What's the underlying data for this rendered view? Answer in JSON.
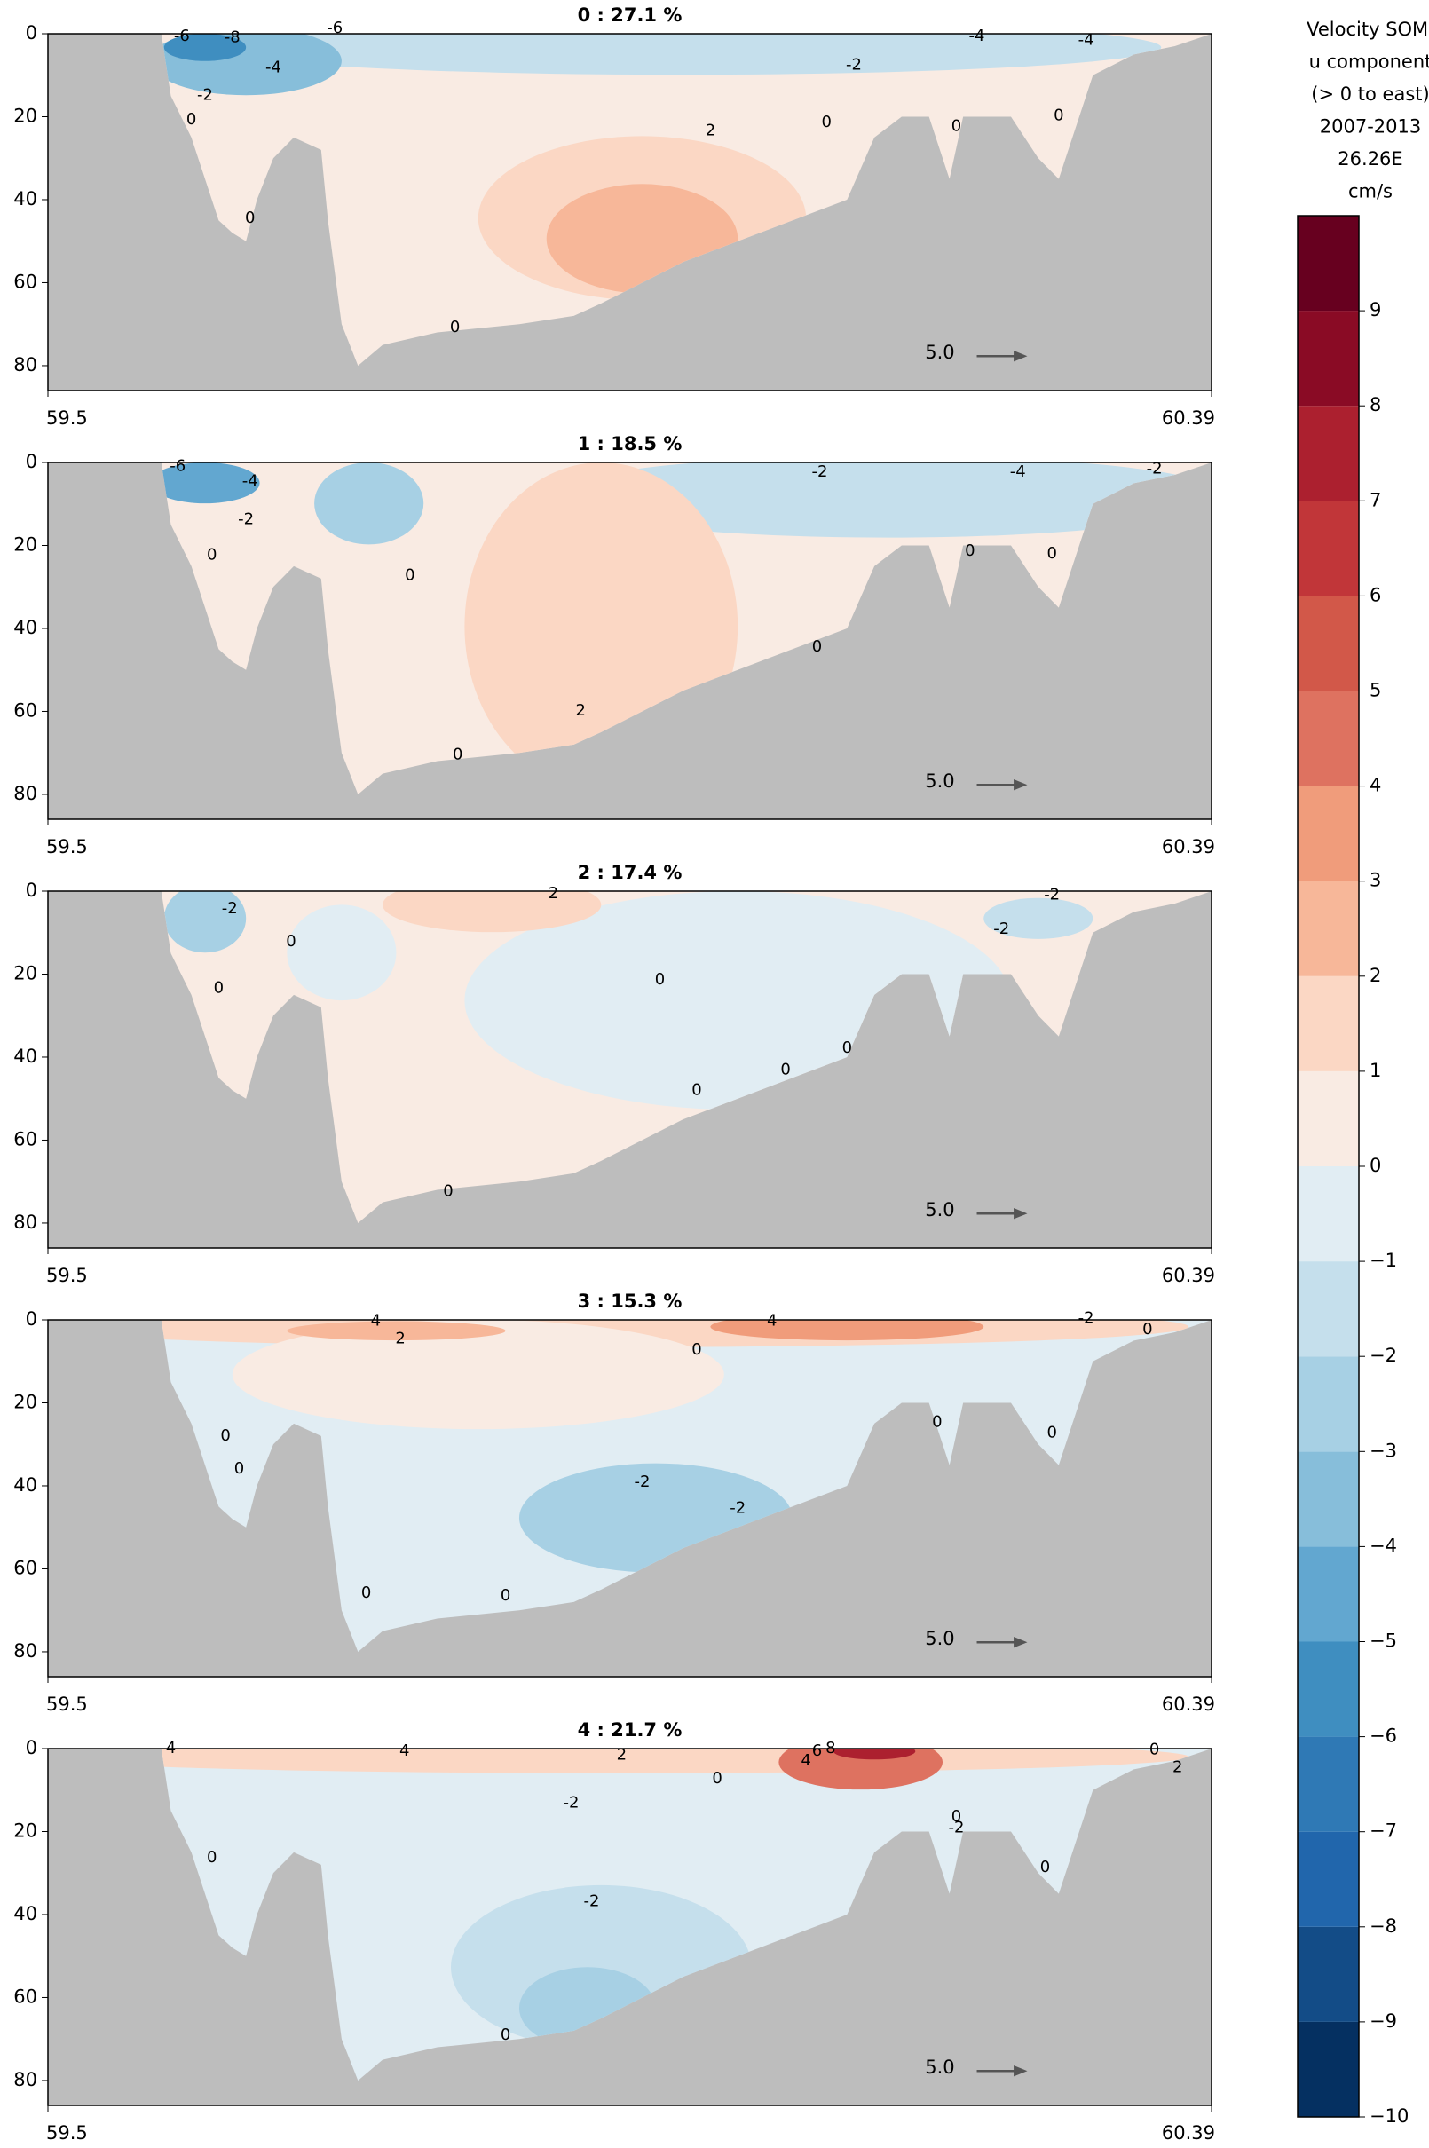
{
  "chart_data": [
    {
      "type": "section",
      "title": "0 : 27.1 %",
      "xlim": [
        59.5,
        60.39
      ],
      "xticks": [
        59.5,
        60.39
      ],
      "ylim": [
        0,
        86
      ],
      "yticks": [
        0,
        20,
        40,
        60,
        80
      ],
      "contour_labels": [
        -6,
        -8,
        -6,
        -2,
        -4,
        0,
        2,
        -2,
        -4,
        -4,
        0,
        0,
        0,
        0,
        0
      ],
      "reference_label": "5.0"
    },
    {
      "type": "section",
      "title": "1 : 18.5 %",
      "xlim": [
        59.5,
        60.39
      ],
      "xticks": [
        59.5,
        60.39
      ],
      "ylim": [
        0,
        86
      ],
      "yticks": [
        0,
        20,
        40,
        60,
        80
      ],
      "contour_labels": [
        -6,
        -4,
        -2,
        0,
        0,
        -2,
        -4,
        -2,
        0,
        0,
        0,
        2,
        0
      ],
      "reference_label": "5.0"
    },
    {
      "type": "section",
      "title": "2 : 17.4 %",
      "xlim": [
        59.5,
        60.39
      ],
      "xticks": [
        59.5,
        60.39
      ],
      "ylim": [
        0,
        86
      ],
      "yticks": [
        0,
        20,
        40,
        60,
        80
      ],
      "contour_labels": [
        -2,
        0,
        0,
        2,
        0,
        -2,
        -2,
        0,
        0,
        0,
        0
      ],
      "reference_label": "5.0"
    },
    {
      "type": "section",
      "title": "3 : 15.3 %",
      "xlim": [
        59.5,
        60.39
      ],
      "xticks": [
        59.5,
        60.39
      ],
      "ylim": [
        0,
        86
      ],
      "yticks": [
        0,
        20,
        40,
        60,
        80
      ],
      "contour_labels": [
        4,
        2,
        4,
        0,
        -2,
        0,
        0,
        0,
        -2,
        -2,
        0,
        0,
        0,
        0
      ],
      "reference_label": "5.0"
    },
    {
      "type": "section",
      "title": "4 : 21.7 %",
      "xlim": [
        59.5,
        60.39
      ],
      "xticks": [
        59.5,
        60.39
      ],
      "ylim": [
        0,
        86
      ],
      "yticks": [
        0,
        20,
        40,
        60,
        80
      ],
      "contour_labels": [
        4,
        4,
        2,
        0,
        4,
        6,
        8,
        -2,
        0,
        -2,
        -2,
        0,
        0,
        0,
        2,
        0
      ],
      "reference_label": "5.0"
    },
    {
      "type": "colorbar",
      "title": [
        "Velocity SOM,",
        "u component",
        "(> 0 to east)",
        "2007-2013",
        "26.26E",
        "cm/s"
      ],
      "lim": [
        -10,
        10
      ],
      "ticks": [
        {
          "value": -10,
          "label": "−10"
        },
        {
          "value": -9,
          "label": "−9"
        },
        {
          "value": -8,
          "label": "−8"
        },
        {
          "value": -7,
          "label": "−7"
        },
        {
          "value": -6,
          "label": "−6"
        },
        {
          "value": -5,
          "label": "−5"
        },
        {
          "value": -4,
          "label": "−4"
        },
        {
          "value": -3,
          "label": "−3"
        },
        {
          "value": -2,
          "label": "−2"
        },
        {
          "value": -1,
          "label": "−1"
        },
        0,
        1,
        2,
        3,
        4,
        5,
        6,
        7,
        8,
        9
      ],
      "colors": [
        "#053061",
        "#134c87",
        "#2166ac",
        "#2f79b5",
        "#3f8ec0",
        "#62a7d0",
        "#87beda",
        "#a7d0e4",
        "#c5dfec",
        "#e1edf3",
        "#f9ebe3",
        "#fbd7c4",
        "#f7b799",
        "#f09c7b",
        "#de7260",
        "#d25849",
        "#c13639",
        "#ac202f",
        "#8a0b25",
        "#67001f"
      ]
    }
  ]
}
